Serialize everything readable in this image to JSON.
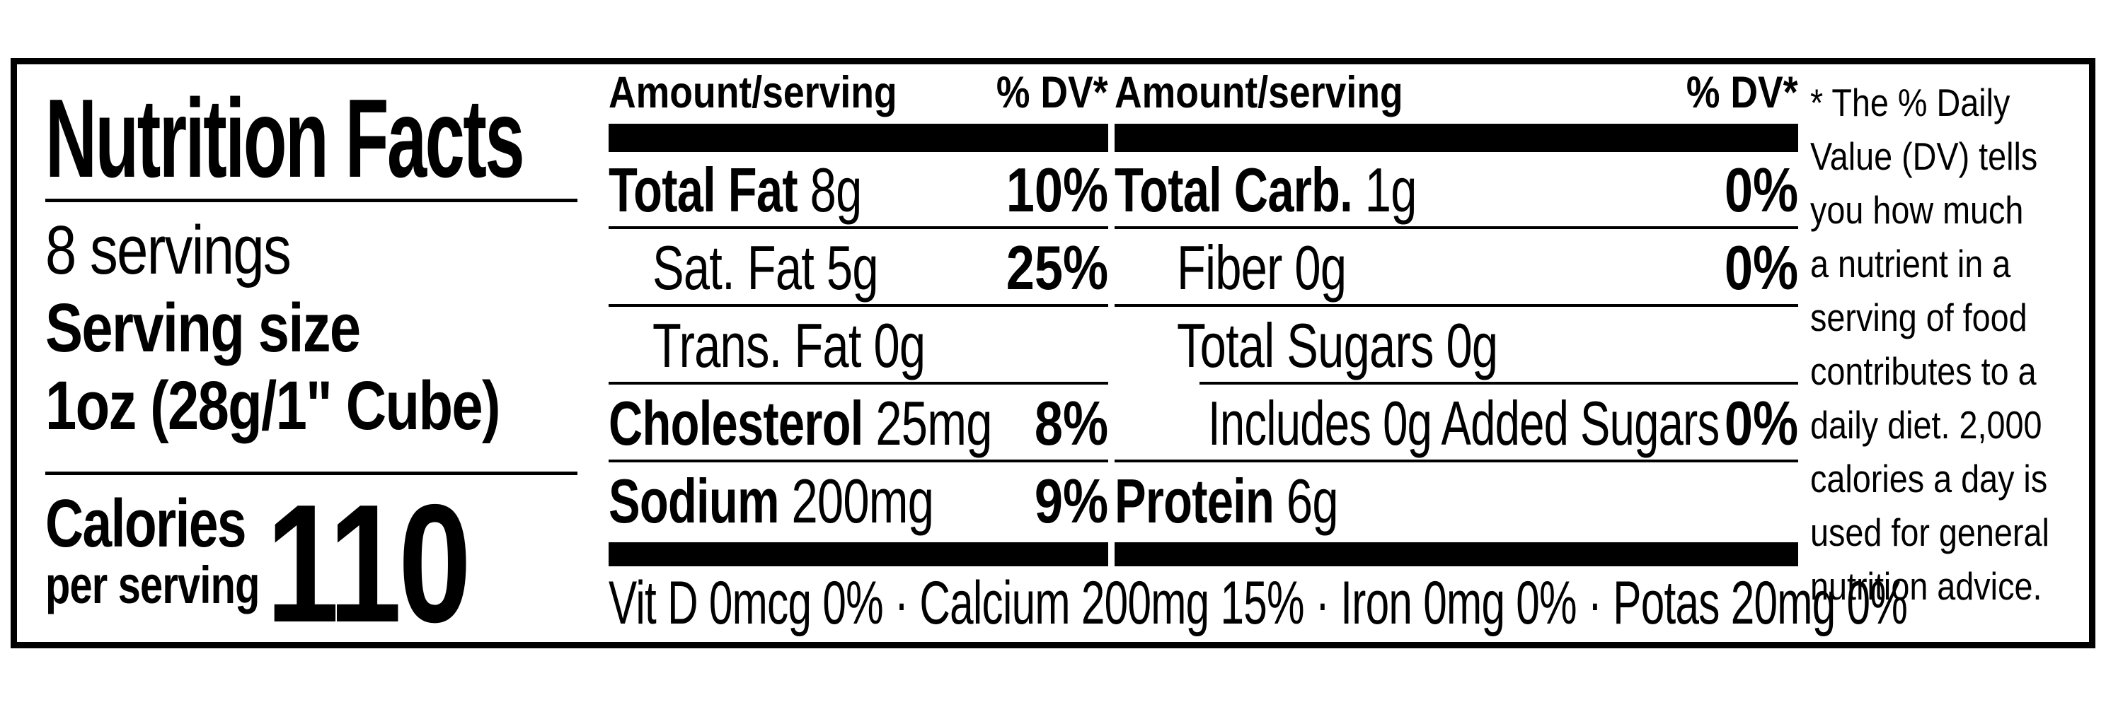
{
  "colors": {
    "ink": "#000000",
    "background": "#ffffff"
  },
  "label": {
    "title": "Nutrition Facts",
    "servings_per_container": "8 servings",
    "serving_size_label": "Serving size",
    "serving_size_value": "1oz (28g/1\" Cube)",
    "calories_label": "Calories",
    "calories_sublabel": "per serving",
    "calories_value": "110",
    "col1": {
      "header_amount": "Amount/serving",
      "header_dv": "% DV*",
      "rows": [
        {
          "bold": "Total Fat",
          "rest": " 8g",
          "dv": "10%"
        },
        {
          "bold": "",
          "rest": "Sat. Fat 5g",
          "dv": "25%"
        },
        {
          "bold": "",
          "rest": "Trans. Fat 0g",
          "dv": ""
        },
        {
          "bold": "Cholesterol",
          "rest": " 25mg",
          "dv": "8%"
        },
        {
          "bold": "Sodium",
          "rest": " 200mg",
          "dv": "9%"
        }
      ]
    },
    "col2": {
      "header_amount": "Amount/serving",
      "header_dv": "% DV*",
      "rows": [
        {
          "bold": "Total Carb.",
          "rest": " 1g",
          "dv": "0%"
        },
        {
          "bold": "",
          "rest": "Fiber 0g",
          "dv": "0%"
        },
        {
          "bold": "",
          "rest": "Total Sugars 0g",
          "dv": ""
        },
        {
          "bold": "",
          "rest": "Includes 0g Added Sugars",
          "dv": "0%"
        },
        {
          "bold": "Protein",
          "rest": " 6g",
          "dv": ""
        }
      ]
    },
    "micronutrients": "Vit D 0mcg 0% · Calcium 200mg 15% · Iron 0mg 0% · Potas 20mg 0%",
    "footnote_lines": [
      "* The % Daily",
      "Value (DV) tells",
      "you how much",
      "a nutrient in a",
      "serving of food",
      "contributes to a",
      "daily diet. 2,000",
      "calories a day is",
      "used for general",
      "nutrition advice."
    ]
  }
}
